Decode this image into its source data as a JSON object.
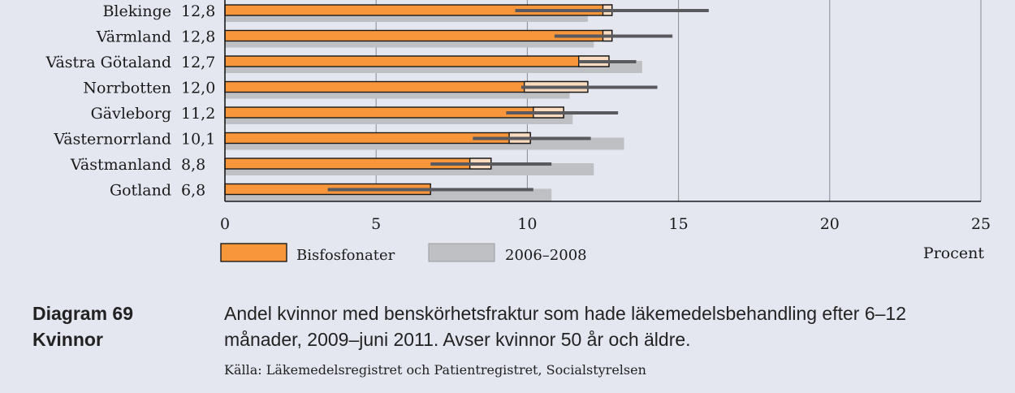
{
  "chart_data": {
    "type": "bar",
    "orientation": "horizontal",
    "categories": [
      "Blekinge",
      "Värmland",
      "Västra Götaland",
      "Norrbotten",
      "Gävleborg",
      "Västernorrland",
      "Västmanland",
      "Gotland"
    ],
    "value_labels": [
      "12,8",
      "12,8",
      "12,7",
      "12,0",
      "11,2",
      "10,1",
      "8,8",
      "6,8"
    ],
    "series": [
      {
        "name": "Bisfosfonater",
        "color": "#f7963a",
        "values": [
          12.8,
          12.8,
          12.7,
          12.0,
          11.2,
          10.1,
          8.8,
          6.8
        ],
        "error_low": [
          9.6,
          10.9,
          11.7,
          9.8,
          9.3,
          8.2,
          6.8,
          3.4
        ],
        "error_high": [
          16.0,
          14.8,
          13.6,
          14.3,
          13.0,
          12.1,
          10.8,
          10.2
        ],
        "highlight_from": [
          12.5,
          12.5,
          11.7,
          9.9,
          10.2,
          9.4,
          8.1,
          6.7
        ]
      },
      {
        "name": "2006–2008",
        "color": "#bfc0c4",
        "values": [
          12.0,
          12.2,
          13.8,
          11.4,
          11.5,
          13.2,
          12.2,
          10.8
        ]
      }
    ],
    "xlim": [
      0,
      25
    ],
    "xticks": [
      "0",
      "5",
      "10",
      "15",
      "20",
      "25"
    ],
    "xlabel": "Procent",
    "grid": true,
    "legend_position": "bottom"
  },
  "caption": {
    "label_line1": "Diagram 69",
    "label_line2": "Kvinnor",
    "text": "Andel kvinnor med benskörhetsfraktur som hade läkemedelsbehandling efter 6–12 månader, 2009–juni 2011. Avser kvinnor 50 år och äldre.",
    "source": "Källa: Läkemedelsregistret och Patientregistret, Socialstyrelsen"
  }
}
